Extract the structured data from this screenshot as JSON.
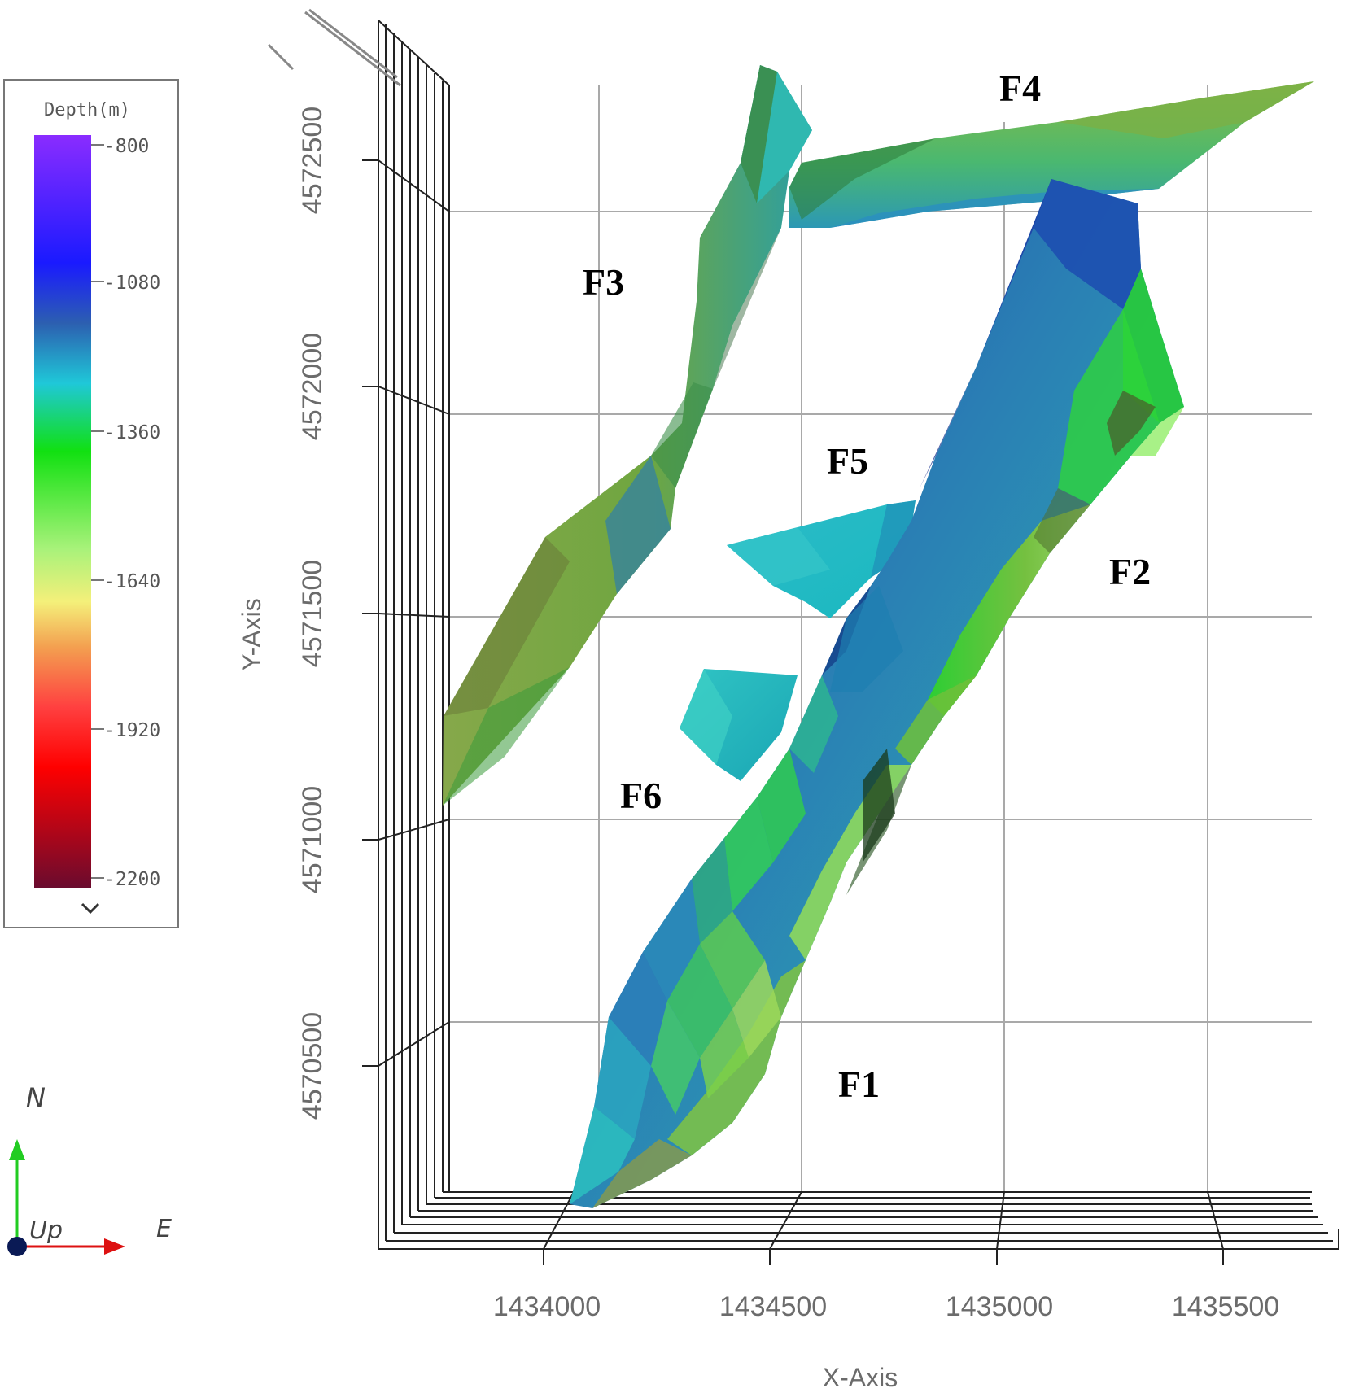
{
  "legend": {
    "title": "Depth(m)",
    "ticks": [
      "-800",
      "-1080",
      "-1360",
      "-1640",
      "-1920",
      "-2200"
    ],
    "expand_icon": "chevron-down-icon",
    "colors": [
      "#7a16ff",
      "#1414ff",
      "#2b6fb3",
      "#1ed2d2",
      "#19e019",
      "#9df56a",
      "#f0f070",
      "#f0a040",
      "#ff3333",
      "#ff0000",
      "#6e0a2a"
    ]
  },
  "axes": {
    "x_label": "X-Axis",
    "y_label": "Y-Axis",
    "x_ticks": [
      "1434000",
      "1434500",
      "1435000",
      "1435500"
    ],
    "y_ticks": [
      "4572500",
      "4572000",
      "4571500",
      "4571000",
      "4570500"
    ]
  },
  "faults": [
    {
      "id": "F1",
      "label": "F1"
    },
    {
      "id": "F2",
      "label": "F2"
    },
    {
      "id": "F3",
      "label": "F3"
    },
    {
      "id": "F4",
      "label": "F4"
    },
    {
      "id": "F5",
      "label": "F5"
    },
    {
      "id": "F6",
      "label": "F6"
    }
  ],
  "compass": {
    "north": "N",
    "east": "E",
    "up": "Up",
    "north_color": "#22cc22",
    "east_color": "#dd1111",
    "up_color": "#0a1a55"
  }
}
